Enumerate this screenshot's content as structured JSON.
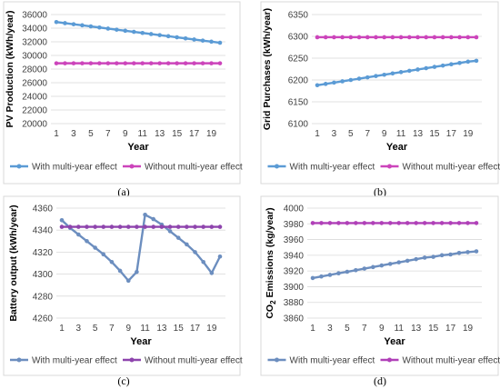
{
  "chart_data": [
    {
      "type": "line",
      "label": "(a)",
      "xlabel": "Year",
      "ylabel": "PV Production (kWh/year)",
      "ylim": [
        20000,
        36000
      ],
      "yticks": [
        "20000",
        "22000",
        "24000",
        "26000",
        "28000",
        "30000",
        "32000",
        "34000",
        "36000"
      ],
      "xticks": [
        "1",
        "3",
        "5",
        "7",
        "9",
        "11",
        "13",
        "15",
        "17",
        "19"
      ],
      "x": [
        1,
        2,
        3,
        4,
        5,
        6,
        7,
        8,
        9,
        10,
        11,
        12,
        13,
        14,
        15,
        16,
        17,
        18,
        19,
        20
      ],
      "grid": true,
      "legend": "bottom",
      "series": [
        {
          "name": "With multi-year effect",
          "color": "#5b9bd5",
          "values": [
            34900,
            34740,
            34580,
            34420,
            34260,
            34100,
            33940,
            33780,
            33620,
            33460,
            33300,
            33140,
            32980,
            32820,
            32660,
            32500,
            32340,
            32180,
            32020,
            31860
          ]
        },
        {
          "name": "Without  multi-year effect",
          "color": "#cc44bb",
          "values": [
            28850,
            28850,
            28850,
            28850,
            28850,
            28850,
            28850,
            28850,
            28850,
            28850,
            28850,
            28850,
            28850,
            28850,
            28850,
            28850,
            28850,
            28850,
            28850,
            28850
          ]
        }
      ]
    },
    {
      "type": "line",
      "label": "(b)",
      "xlabel": "Year",
      "ylabel": "Grid Purchases (kWh/year)",
      "ylim": [
        6100,
        6350
      ],
      "yticks": [
        "6100",
        "6150",
        "6200",
        "6250",
        "6300",
        "6350"
      ],
      "xticks": [
        "1",
        "3",
        "5",
        "7",
        "9",
        "11",
        "13",
        "15",
        "17",
        "19"
      ],
      "x": [
        1,
        2,
        3,
        4,
        5,
        6,
        7,
        8,
        9,
        10,
        11,
        12,
        13,
        14,
        15,
        16,
        17,
        18,
        19,
        20
      ],
      "grid": true,
      "legend": "bottom",
      "series": [
        {
          "name": "With multi-year effect",
          "color": "#5b9bd5",
          "values": [
            6188,
            6191,
            6194,
            6197,
            6200,
            6203,
            6206,
            6209,
            6212,
            6215,
            6218,
            6221,
            6224,
            6227,
            6230,
            6233,
            6236,
            6239,
            6242,
            6244
          ]
        },
        {
          "name": "Without  multi-year effect",
          "color": "#cc44bb",
          "values": [
            6298,
            6298,
            6298,
            6298,
            6298,
            6298,
            6298,
            6298,
            6298,
            6298,
            6298,
            6298,
            6298,
            6298,
            6298,
            6298,
            6298,
            6298,
            6298,
            6298
          ]
        }
      ]
    },
    {
      "type": "line",
      "label": "(c)",
      "xlabel": "Year",
      "ylabel": "Battery output (kWh/year)",
      "ylim": [
        4260,
        4360
      ],
      "yticks": [
        "4260",
        "4280",
        "4300",
        "4320",
        "4340",
        "4360"
      ],
      "xticks": [
        "1",
        "3",
        "5",
        "7",
        "9",
        "11",
        "13",
        "15",
        "17",
        "19"
      ],
      "x": [
        1,
        2,
        3,
        4,
        5,
        6,
        7,
        8,
        9,
        10,
        11,
        12,
        13,
        14,
        15,
        16,
        17,
        18,
        19,
        20
      ],
      "grid": true,
      "legend": "bottom",
      "series": [
        {
          "name": "With multi-year effect",
          "color": "#6c8ebf",
          "values": [
            4349,
            4342,
            4336,
            4330,
            4324,
            4318,
            4311,
            4303,
            4294,
            4302,
            4354,
            4350,
            4345,
            4339,
            4333,
            4327,
            4320,
            4311,
            4301,
            4316
          ]
        },
        {
          "name": "Without  multi-year effect",
          "color": "#8e44ad",
          "values": [
            4343,
            4343,
            4343,
            4343,
            4343,
            4343,
            4343,
            4343,
            4343,
            4343,
            4343,
            4343,
            4343,
            4343,
            4343,
            4343,
            4343,
            4343,
            4343,
            4343
          ]
        }
      ]
    },
    {
      "type": "line",
      "label": "(d)",
      "xlabel": "Year",
      "ylabel_main": "CO",
      "ylabel_sub": "2",
      "ylabel_rest": " Emissions (kg/year)",
      "ylim": [
        3860,
        4000
      ],
      "yticks": [
        "3860",
        "3880",
        "3900",
        "3920",
        "3940",
        "3960",
        "3980",
        "4000"
      ],
      "xticks": [
        "1",
        "3",
        "5",
        "7",
        "9",
        "11",
        "13",
        "15",
        "17",
        "19"
      ],
      "x": [
        1,
        2,
        3,
        4,
        5,
        6,
        7,
        8,
        9,
        10,
        11,
        12,
        13,
        14,
        15,
        16,
        17,
        18,
        19,
        20
      ],
      "grid": true,
      "legend": "bottom",
      "series": [
        {
          "name": "With multi-year effect",
          "color": "#6c8ebf",
          "values": [
            3911,
            3913,
            3915,
            3917,
            3919,
            3921,
            3923,
            3925,
            3927,
            3929,
            3931,
            3933,
            3935,
            3937,
            3938,
            3940,
            3941,
            3943,
            3944,
            3945
          ]
        },
        {
          "name": "Without  multi-year effect",
          "color": "#b040b8",
          "values": [
            3981,
            3981,
            3981,
            3981,
            3981,
            3981,
            3981,
            3981,
            3981,
            3981,
            3981,
            3981,
            3981,
            3981,
            3981,
            3981,
            3981,
            3981,
            3981,
            3981
          ]
        }
      ]
    }
  ]
}
